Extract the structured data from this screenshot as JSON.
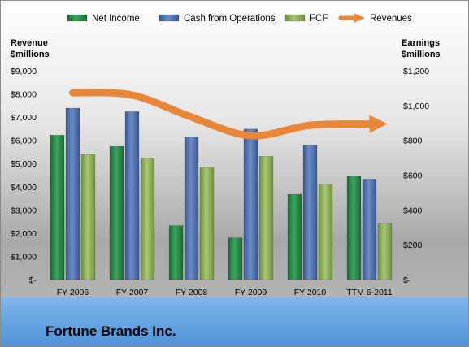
{
  "chart_data": {
    "type": "bar",
    "title": "Fortune Brands Inc.",
    "categories": [
      "FY 2006",
      "FY 2007",
      "FY 2008",
      "FY 2009",
      "FY 2010",
      "TTM 6-2011"
    ],
    "left_axis": {
      "label_line1": "Revenue",
      "label_line2": "$millions",
      "ylim": [
        0,
        9000
      ],
      "ticks": [
        0,
        1000,
        2000,
        3000,
        4000,
        5000,
        6000,
        7000,
        8000,
        9000
      ],
      "tick_labels": [
        "$-",
        "$1,000",
        "$2,000",
        "$3,000",
        "$4,000",
        "$5,000",
        "$6,000",
        "$7,000",
        "$8,000",
        "$9,000"
      ]
    },
    "right_axis": {
      "label_line1": "Earnings",
      "label_line2": "$millions",
      "ylim": [
        0,
        1200
      ],
      "ticks": [
        0,
        200,
        400,
        600,
        800,
        1000,
        1200
      ],
      "tick_labels": [
        "$-",
        "$200",
        "$400",
        "$600",
        "$800",
        "$1,000",
        "$1,200"
      ]
    },
    "series": [
      {
        "name": "Net Income",
        "type": "bar",
        "axis": "right",
        "color": "#2e8b4a",
        "values": [
          830,
          765,
          310,
          240,
          490,
          595
        ]
      },
      {
        "name": "Cash from Operations",
        "type": "bar",
        "axis": "right",
        "color": "#4f6fad",
        "values": [
          985,
          965,
          820,
          865,
          772,
          577
        ]
      },
      {
        "name": "FCF",
        "type": "bar",
        "axis": "right",
        "color": "#8fb05a",
        "values": [
          718,
          698,
          643,
          708,
          548,
          322
        ]
      },
      {
        "name": "Revenues",
        "type": "line",
        "axis": "left",
        "color": "#e8863a",
        "values": [
          8050,
          7950,
          7000,
          6200,
          6650,
          6700
        ]
      }
    ],
    "legend_position": "top",
    "grid": false
  }
}
